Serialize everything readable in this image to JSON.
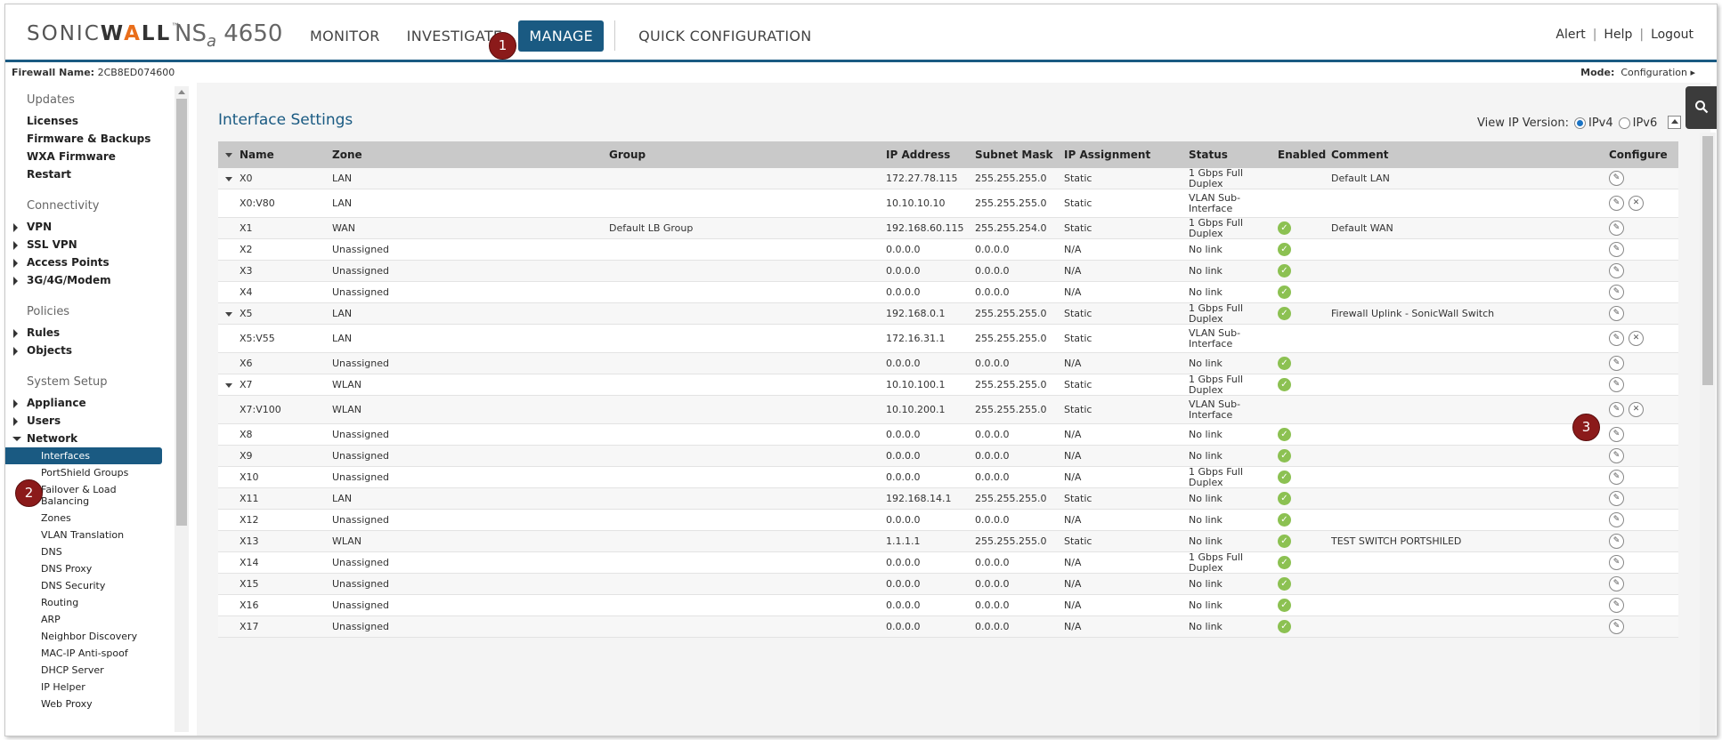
{
  "header": {
    "logo_sonic": "SONIC",
    "logo_wall_w": "W",
    "logo_wall_a": "A",
    "logo_wall_ll": "LL",
    "logo_tm": "™",
    "model_ns": "NS",
    "model_sub": "a",
    "model_num": "4650",
    "tabs": [
      "MONITOR",
      "INVESTIGATE",
      "MANAGE",
      "QUICK CONFIGURATION"
    ],
    "active_tab": "MANAGE",
    "links": [
      "Alert",
      "Help",
      "Logout"
    ]
  },
  "subbar": {
    "fw_label": "Firewall Name:",
    "fw_name": "2CB8ED074600",
    "mode_label": "Mode:",
    "mode_value": "Configuration ▸"
  },
  "sidebar": {
    "groups": [
      {
        "title": "Updates",
        "items": [
          "Licenses",
          "Firmware & Backups",
          "WXA Firmware",
          "Restart"
        ]
      },
      {
        "title": "Connectivity",
        "items": [
          "VPN",
          "SSL VPN",
          "Access Points",
          "3G/4G/Modem"
        ]
      },
      {
        "title": "Policies",
        "items": [
          "Rules",
          "Objects"
        ]
      },
      {
        "title": "System Setup",
        "items": [
          "Appliance",
          "Users",
          "Network"
        ]
      }
    ],
    "network_subitems": [
      "Interfaces",
      "PortShield Groups",
      "Failover & Load Balancing",
      "Zones",
      "VLAN Translation",
      "DNS",
      "DNS Proxy",
      "DNS Security",
      "Routing",
      "ARP",
      "Neighbor Discovery",
      "MAC-IP Anti-spoof",
      "DHCP Server",
      "IP Helper",
      "Web Proxy"
    ],
    "active_subitem": "Interfaces"
  },
  "main": {
    "title": "Interface Settings",
    "ip_version_label": "View IP Version:",
    "ipv4": "IPv4",
    "ipv6": "IPv6",
    "columns": [
      "Name",
      "Zone",
      "Group",
      "IP Address",
      "Subnet Mask",
      "IP Assignment",
      "Status",
      "Enabled",
      "Comment",
      "Configure"
    ],
    "rows": [
      {
        "name": "X0",
        "zone": "LAN",
        "group": "",
        "ip": "172.27.78.115",
        "mask": "255.255.255.0",
        "assign": "Static",
        "status": "1 Gbps Full Duplex",
        "enabled": false,
        "comment": "Default LAN",
        "parent": true,
        "sub": false,
        "delete": false
      },
      {
        "name": "X0:V80",
        "zone": "LAN",
        "group": "",
        "ip": "10.10.10.10",
        "mask": "255.255.255.0",
        "assign": "Static",
        "status": "VLAN Sub-Interface",
        "enabled": false,
        "comment": "",
        "parent": false,
        "sub": true,
        "delete": true
      },
      {
        "name": "X1",
        "zone": "WAN",
        "group": "Default LB Group",
        "ip": "192.168.60.115",
        "mask": "255.255.254.0",
        "assign": "Static",
        "status": "1 Gbps Full Duplex",
        "enabled": true,
        "comment": "Default WAN",
        "parent": false,
        "sub": false,
        "delete": false
      },
      {
        "name": "X2",
        "zone": "Unassigned",
        "group": "",
        "ip": "0.0.0.0",
        "mask": "0.0.0.0",
        "assign": "N/A",
        "status": "No link",
        "enabled": true,
        "comment": "",
        "parent": false,
        "sub": false,
        "delete": false
      },
      {
        "name": "X3",
        "zone": "Unassigned",
        "group": "",
        "ip": "0.0.0.0",
        "mask": "0.0.0.0",
        "assign": "N/A",
        "status": "No link",
        "enabled": true,
        "comment": "",
        "parent": false,
        "sub": false,
        "delete": false
      },
      {
        "name": "X4",
        "zone": "Unassigned",
        "group": "",
        "ip": "0.0.0.0",
        "mask": "0.0.0.0",
        "assign": "N/A",
        "status": "No link",
        "enabled": true,
        "comment": "",
        "parent": false,
        "sub": false,
        "delete": false
      },
      {
        "name": "X5",
        "zone": "LAN",
        "group": "",
        "ip": "192.168.0.1",
        "mask": "255.255.255.0",
        "assign": "Static",
        "status": "1 Gbps Full Duplex",
        "enabled": true,
        "comment": "Firewall Uplink - SonicWall Switch",
        "parent": true,
        "sub": false,
        "delete": false
      },
      {
        "name": "X5:V55",
        "zone": "LAN",
        "group": "",
        "ip": "172.16.31.1",
        "mask": "255.255.255.0",
        "assign": "Static",
        "status": "VLAN Sub-Interface",
        "enabled": false,
        "comment": "",
        "parent": false,
        "sub": true,
        "delete": true
      },
      {
        "name": "X6",
        "zone": "Unassigned",
        "group": "",
        "ip": "0.0.0.0",
        "mask": "0.0.0.0",
        "assign": "N/A",
        "status": "No link",
        "enabled": true,
        "comment": "",
        "parent": false,
        "sub": false,
        "delete": false
      },
      {
        "name": "X7",
        "zone": "WLAN",
        "group": "",
        "ip": "10.10.100.1",
        "mask": "255.255.255.0",
        "assign": "Static",
        "status": "1 Gbps Full Duplex",
        "enabled": true,
        "comment": "",
        "parent": true,
        "sub": false,
        "delete": false
      },
      {
        "name": "X7:V100",
        "zone": "WLAN",
        "group": "",
        "ip": "10.10.200.1",
        "mask": "255.255.255.0",
        "assign": "Static",
        "status": "VLAN Sub-Interface",
        "enabled": false,
        "comment": "",
        "parent": false,
        "sub": true,
        "delete": true
      },
      {
        "name": "X8",
        "zone": "Unassigned",
        "group": "",
        "ip": "0.0.0.0",
        "mask": "0.0.0.0",
        "assign": "N/A",
        "status": "No link",
        "enabled": true,
        "comment": "",
        "parent": false,
        "sub": false,
        "delete": false
      },
      {
        "name": "X9",
        "zone": "Unassigned",
        "group": "",
        "ip": "0.0.0.0",
        "mask": "0.0.0.0",
        "assign": "N/A",
        "status": "No link",
        "enabled": true,
        "comment": "",
        "parent": false,
        "sub": false,
        "delete": false
      },
      {
        "name": "X10",
        "zone": "Unassigned",
        "group": "",
        "ip": "0.0.0.0",
        "mask": "0.0.0.0",
        "assign": "N/A",
        "status": "1 Gbps Full Duplex",
        "enabled": true,
        "comment": "",
        "parent": false,
        "sub": false,
        "delete": false
      },
      {
        "name": "X11",
        "zone": "LAN",
        "group": "",
        "ip": "192.168.14.1",
        "mask": "255.255.255.0",
        "assign": "Static",
        "status": "No link",
        "enabled": true,
        "comment": "",
        "parent": false,
        "sub": false,
        "delete": false
      },
      {
        "name": "X12",
        "zone": "Unassigned",
        "group": "",
        "ip": "0.0.0.0",
        "mask": "0.0.0.0",
        "assign": "N/A",
        "status": "No link",
        "enabled": true,
        "comment": "",
        "parent": false,
        "sub": false,
        "delete": false
      },
      {
        "name": "X13",
        "zone": "WLAN",
        "group": "",
        "ip": "1.1.1.1",
        "mask": "255.255.255.0",
        "assign": "Static",
        "status": "No link",
        "enabled": true,
        "comment": "TEST SWITCH PORTSHILED",
        "parent": false,
        "sub": false,
        "delete": false
      },
      {
        "name": "X14",
        "zone": "Unassigned",
        "group": "",
        "ip": "0.0.0.0",
        "mask": "0.0.0.0",
        "assign": "N/A",
        "status": "1 Gbps Full Duplex",
        "enabled": true,
        "comment": "",
        "parent": false,
        "sub": false,
        "delete": false
      },
      {
        "name": "X15",
        "zone": "Unassigned",
        "group": "",
        "ip": "0.0.0.0",
        "mask": "0.0.0.0",
        "assign": "N/A",
        "status": "No link",
        "enabled": true,
        "comment": "",
        "parent": false,
        "sub": false,
        "delete": false
      },
      {
        "name": "X16",
        "zone": "Unassigned",
        "group": "",
        "ip": "0.0.0.0",
        "mask": "0.0.0.0",
        "assign": "N/A",
        "status": "No link",
        "enabled": true,
        "comment": "",
        "parent": false,
        "sub": false,
        "delete": false
      },
      {
        "name": "X17",
        "zone": "Unassigned",
        "group": "",
        "ip": "0.0.0.0",
        "mask": "0.0.0.0",
        "assign": "N/A",
        "status": "No link",
        "enabled": true,
        "comment": "",
        "parent": false,
        "sub": false,
        "delete": false
      }
    ]
  },
  "callouts": [
    "1",
    "2",
    "3"
  ],
  "colors": {
    "brand_blue": "#1a5a82",
    "logo_accent": "#e96e1b",
    "enabled_green": "#8cc152",
    "callout": "#8b1a1a"
  }
}
